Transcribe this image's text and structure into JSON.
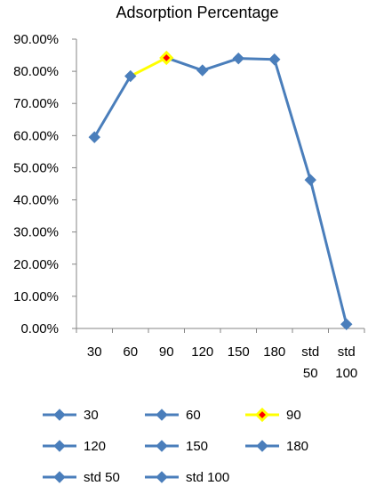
{
  "chart_data": {
    "type": "line",
    "title": "Adsorption Percentage",
    "categories": [
      [
        "30"
      ],
      [
        "60"
      ],
      [
        "90"
      ],
      [
        "120"
      ],
      [
        "150"
      ],
      [
        "180"
      ],
      [
        "std",
        "50"
      ],
      [
        "std",
        "100"
      ]
    ],
    "values": [
      0.595,
      0.785,
      0.842,
      0.803,
      0.84,
      0.837,
      0.462,
      0.013
    ],
    "ylim": [
      0,
      0.9
    ],
    "yticks": [
      "0.00%",
      "10.00%",
      "20.00%",
      "30.00%",
      "40.00%",
      "50.00%",
      "60.00%",
      "70.00%",
      "80.00%",
      "90.00%"
    ],
    "grid": false,
    "highlight_index": 2,
    "colors": {
      "series": "#4a7ebb",
      "highlight_line": "#ffff00",
      "highlight_marker_fill": "#ff0000",
      "highlight_marker_border": "#ffff00",
      "axis": "#868686"
    },
    "legend": {
      "placement": "bottom",
      "entries": [
        "30",
        "60",
        "90",
        "120",
        "150",
        "180",
        "std 50",
        "std 100"
      ]
    }
  }
}
